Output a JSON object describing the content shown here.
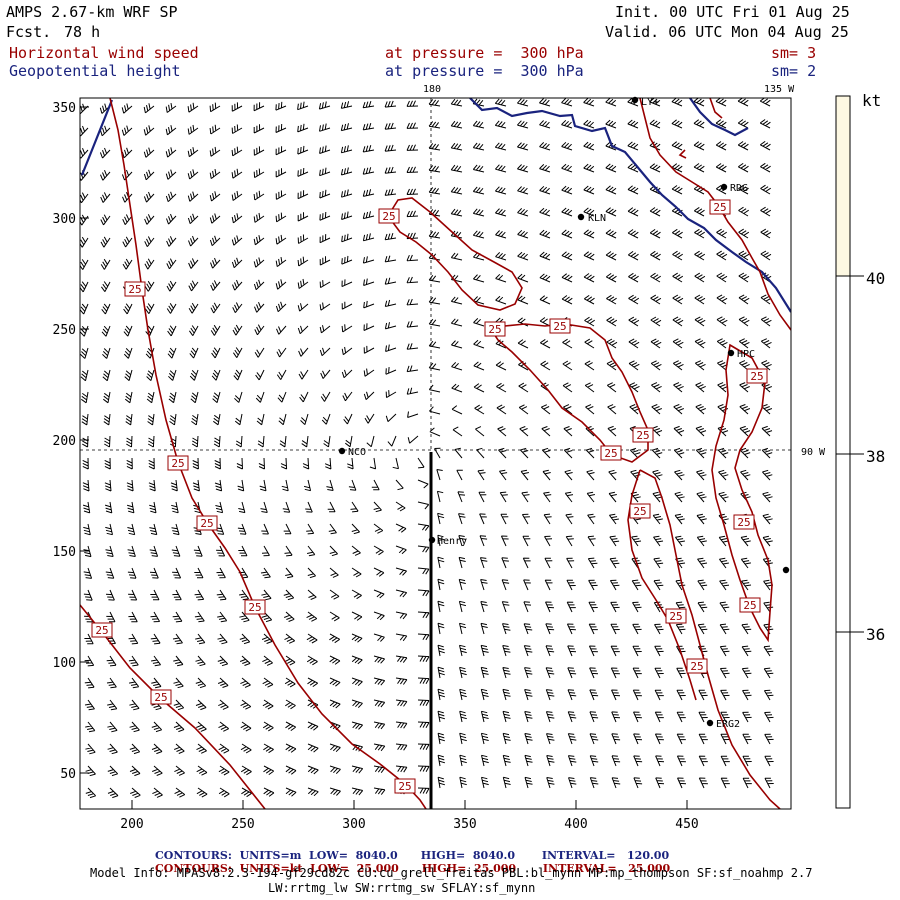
{
  "header": {
    "model": "AMPS 2.67-km WRF SP",
    "fcst_label": "Fcst.",
    "fcst_value": "78 h",
    "init": "Init. 00 UTC Fri 01 Aug 25",
    "valid": "Valid. 06 UTC Mon 04 Aug 25",
    "field1": "Horizontal wind speed",
    "field2": "Geopotential height",
    "pressure1": "at pressure =  300 hPa",
    "pressure2": "at pressure =  300 hPa",
    "sm1": "sm= 3",
    "sm2": "sm= 2"
  },
  "map": {
    "lon_labels": {
      "top_180": "180",
      "top_135w": "135 W",
      "right_90w": "90 W"
    },
    "x_ticks": [
      "200",
      "250",
      "300",
      "350",
      "400",
      "450"
    ],
    "y_ticks": [
      "350",
      "300",
      "250",
      "200",
      "150",
      "100",
      "50"
    ],
    "stations": [
      "LY+",
      "RDG",
      "KLN",
      "HPC",
      "NCO",
      "Henry",
      "ERG2"
    ],
    "contour_label": "25"
  },
  "colorbar": {
    "unit": "kt",
    "ticks": [
      "40",
      "38",
      "36"
    ],
    "top_color": "#fdf8e2"
  },
  "footer": {
    "row1": [
      "CONTOURS:",
      "UNITS=m",
      "LOW=",
      "8040.0",
      "HIGH=",
      "8040.0",
      "INTERVAL=",
      "120.00"
    ],
    "row2": [
      "CONTOURS:",
      "UNITS=kt",
      "LOW=",
      "25.000",
      "HIGH=",
      "25.000",
      "INTERVAL=",
      "25.000"
    ],
    "model_info": "Model Info: MPASv8.2.3-194-gf29cd82c CU:cu_grell_freitas PBL:bl_mynn MP:mp_thompson SF:sf_noahmp 2.7",
    "model_info2": "LW:rrtmg_lw SW:rrtmg_sw SFLAY:sf_mynn"
  },
  "colors": {
    "contour_red": "#990000",
    "contour_blue": "#1a237e"
  }
}
